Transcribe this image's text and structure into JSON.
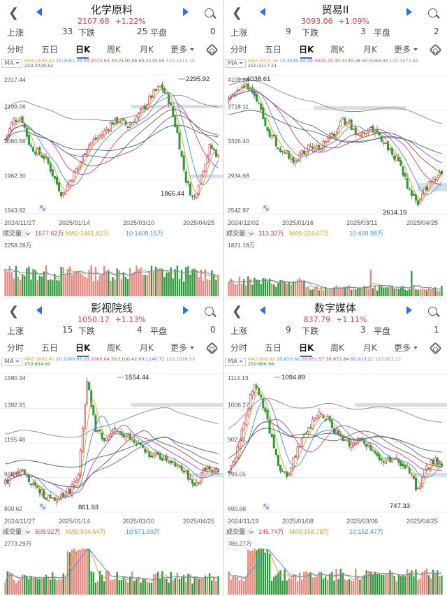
{
  "colors": {
    "up": "#e0393e",
    "down": "#2b9a3a",
    "accent": "#2b6ee6",
    "ma5": "#e89a1a",
    "ma10": "#3b8ee6",
    "ma20": "#d23ca0",
    "ma30": "#8a5a2c",
    "ma60": "#6b5ad6",
    "ma120": "#888888",
    "ma250": "#2c7a4a"
  },
  "tabs": [
    "分时",
    "五日",
    "日K",
    "周K",
    "月K",
    "更多"
  ],
  "labels": {
    "rise": "上涨",
    "fall": "下跌",
    "flat": "平盘",
    "ma": "MA",
    "volume": "成交量"
  },
  "icons": {
    "back": "back-icon",
    "prev": "prev-arrow-icon",
    "next": "next-arrow-icon",
    "search": "search-icon",
    "settings": "settings-icon",
    "zoom": "zoom-icon"
  },
  "panels": [
    {
      "title": "化学原料",
      "price": "2107.68",
      "change": "+1.22%",
      "rise": "33",
      "fall": "25",
      "flat": "0",
      "ma": {
        "ma5": "MA5:2086.42",
        "ma10": "10:2061.35",
        "ma20": "20:2074.94",
        "ma30": "30:2130.38",
        "ma60": "60:2139.55",
        "ma120": "120:2112.75",
        "ma250": "250:2028.62"
      },
      "yticks": [
        "2317.44",
        "2199.06",
        "2080.68",
        "1962.30",
        "1843.92"
      ],
      "dates": [
        "2024/11/27",
        "2025/01/14",
        "2025/03/10",
        "2025/04/25"
      ],
      "max_label": "2295.92",
      "min_label": "1865.44",
      "vol_value": "1677.62万",
      "vol_ma5": "MA5:1461.82万",
      "vol_ma10": "10:1409.15万",
      "vol_max": "2258.28万"
    },
    {
      "title": "贸易II",
      "price": "3093.06",
      "change": "+1.09%",
      "rise": "9",
      "fall": "3",
      "flat": "2",
      "ma": {
        "ma5": "MA5:3074.36",
        "ma10": "10:3035.94",
        "ma20": "20:3029.79",
        "ma30": "30:3130.06",
        "ma60": "60:3269.03",
        "ma120": "120:3470.81",
        "ma250": "250:3117.21"
      },
      "yticks": [
        "4109.88",
        "3718.11",
        "3326.40",
        "2934.68",
        "2542.97"
      ],
      "dates": [
        "2024/12/02",
        "2025/01/16",
        "2025/03/11",
        "2025/04/25"
      ],
      "max_label": "4038.61",
      "min_label": "2614.19",
      "vol_value": "313.32万",
      "vol_ma5": "MA5:324.67万",
      "vol_ma10": "10:409.98万",
      "vol_max": "1821.18万"
    },
    {
      "title": "影视院线",
      "price": "1050.17",
      "change": "+1.13%",
      "rise": "15",
      "fall": "4",
      "flat": "0",
      "ma": {
        "ma5": "MA5:1065.41",
        "ma10": "10:1060.95",
        "ma20": "20:1066.84",
        "ma30": "30:1100.42",
        "ma60": "60:1140.71",
        "ma120": "120:1076.53",
        "ma250": "250:954.60"
      },
      "yticks": [
        "1590.34",
        "1392.91",
        "1195.48",
        "998.05",
        "800.62"
      ],
      "dates": [
        "2024/11/27",
        "2025/01/14",
        "2025/03/10",
        "2025/04/25"
      ],
      "max_label": "1554.44",
      "min_label": "861.93",
      "vol_value": "508.92万",
      "vol_ma5": "MA5:594.54万",
      "vol_ma10": "10:571.69万",
      "vol_max": "2773.29万"
    },
    {
      "title": "数字媒体",
      "price": "837.79",
      "change": "+1.11%",
      "rise": "9",
      "fall": "3",
      "flat": "1",
      "ma": {
        "ma5": "MA5:868.92",
        "ma10": "10:850.66",
        "ma20": "20:851.57",
        "ma30": "30:872.84",
        "ma60": "60:913.21",
        "ma120": "120:913.12",
        "ma250": "250:806.96"
      },
      "yticks": [
        "1114.13",
        "1008.27",
        "902.41",
        "796.55",
        "690.68"
      ],
      "dates": [
        "2024/11/19",
        "2025/01/08",
        "2025/03/06",
        "2025/04/25"
      ],
      "max_label": "1094.89",
      "min_label": "747.33",
      "vol_value": "145.74万",
      "vol_ma5": "MA5:168.78万",
      "vol_ma10": "10:152.47万",
      "vol_max": "786.27万"
    }
  ]
}
